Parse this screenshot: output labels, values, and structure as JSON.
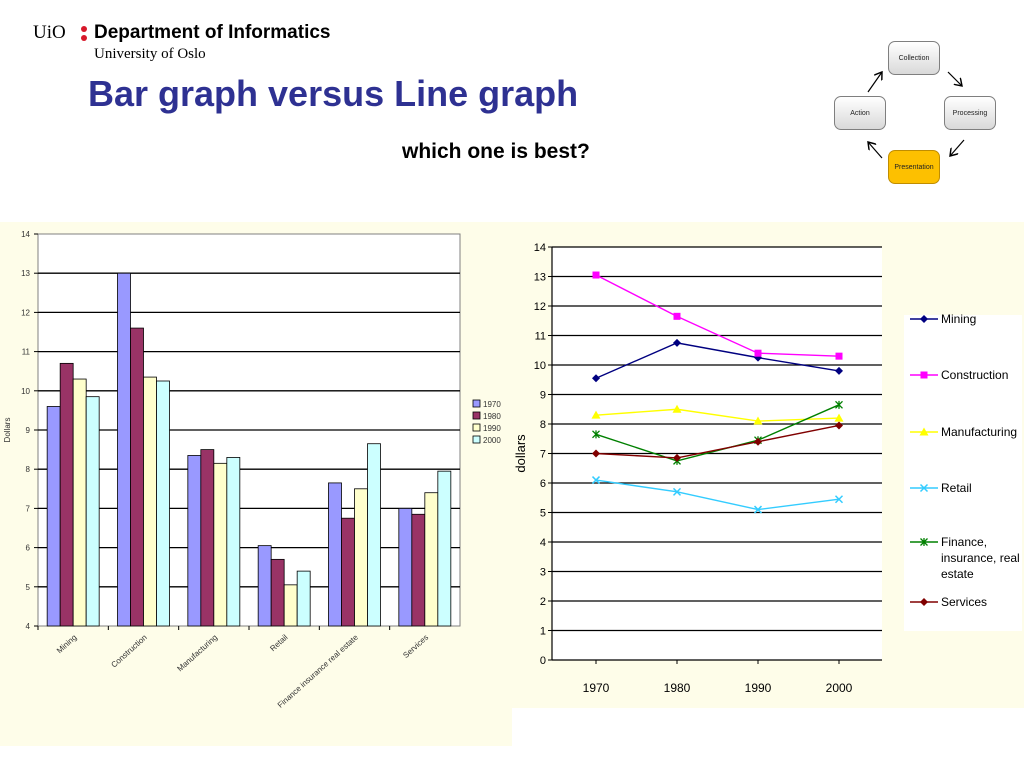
{
  "header": {
    "brand": "UiO",
    "department": "Department of Informatics",
    "university": "University of Oslo",
    "brand_dot_color": "#d7182a"
  },
  "title": "Bar graph versus Line graph",
  "subtitle": "which one is best?",
  "cycle": {
    "steps": [
      "Collection",
      "Processing",
      "Presentation",
      "Action"
    ],
    "active": "Presentation",
    "active_color": "#fdc000"
  },
  "chart_data": [
    {
      "type": "bar",
      "ylabel": "Dollars",
      "ylim": [
        4,
        14
      ],
      "yticks": [
        4,
        5,
        6,
        7,
        8,
        9,
        10,
        11,
        12,
        13,
        14
      ],
      "grid": true,
      "legend_position": "right",
      "categories": [
        "Mining",
        "Construction",
        "Manufacturing",
        "Retail",
        "Finance insurance real estate",
        "Services"
      ],
      "series": [
        {
          "name": "1970",
          "color": "#9999ff",
          "values": [
            9.6,
            13.0,
            8.35,
            6.05,
            7.65,
            7.0
          ]
        },
        {
          "name": "1980",
          "color": "#993366",
          "values": [
            10.7,
            11.6,
            8.5,
            5.7,
            6.75,
            6.85
          ]
        },
        {
          "name": "1990",
          "color": "#ffffcc",
          "values": [
            10.3,
            10.35,
            8.15,
            5.05,
            7.5,
            7.4
          ]
        },
        {
          "name": "2000",
          "color": "#ccffff",
          "values": [
            9.85,
            10.25,
            8.3,
            5.4,
            8.65,
            7.95
          ]
        }
      ]
    },
    {
      "type": "line",
      "ylabel": "dollars",
      "ylim": [
        0,
        14
      ],
      "yticks": [
        0,
        1,
        2,
        3,
        4,
        5,
        6,
        7,
        8,
        9,
        10,
        11,
        12,
        13,
        14
      ],
      "grid": true,
      "legend_position": "right",
      "x": [
        "1970",
        "1980",
        "1990",
        "2000"
      ],
      "series": [
        {
          "name": "Mining",
          "color": "#000080",
          "marker": "diamond",
          "values": [
            9.55,
            10.75,
            10.25,
            9.8
          ]
        },
        {
          "name": "Construction",
          "color": "#ff00ff",
          "marker": "square",
          "values": [
            13.05,
            11.65,
            10.4,
            10.3
          ]
        },
        {
          "name": "Manufacturing",
          "color": "#ffff00",
          "marker": "triangle",
          "values": [
            8.3,
            8.5,
            8.1,
            8.2
          ]
        },
        {
          "name": "Retail",
          "color": "#33ccff",
          "marker": "x",
          "values": [
            6.1,
            5.7,
            5.1,
            5.45
          ]
        },
        {
          "name": "Finance, insurance, real estate",
          "color": "#008000",
          "marker": "star",
          "values": [
            7.65,
            6.75,
            7.45,
            8.65
          ]
        },
        {
          "name": "Services",
          "color": "#800000",
          "marker": "diamond",
          "values": [
            7.0,
            6.85,
            7.4,
            7.95
          ]
        }
      ]
    }
  ]
}
